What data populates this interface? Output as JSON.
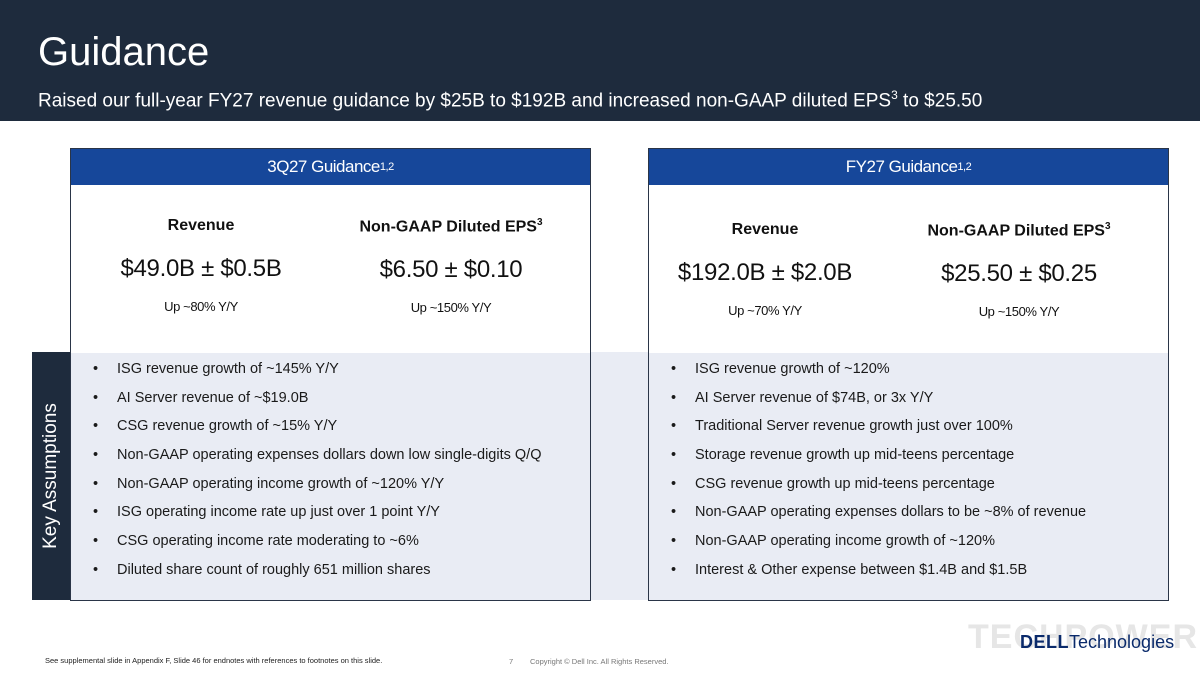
{
  "header": {
    "title": "Guidance",
    "subtitle": "Raised our full-year FY27 revenue guidance by $25B to $192B and increased non-GAAP diluted EPS",
    "subtitle_sup": "3",
    "subtitle_tail": " to $25.50"
  },
  "key_assumptions_label": "Key Assumptions",
  "panels": [
    {
      "title": "3Q27 Guidance",
      "title_sup": "1,2",
      "revenue": {
        "label": "Revenue",
        "value": "$49.0B ± $0.5B",
        "growth": "Up ~80% Y/Y"
      },
      "eps": {
        "label": "Non-GAAP Diluted EPS",
        "label_sup": "3",
        "value": "$6.50 ± $0.10",
        "growth": "Up ~150% Y/Y"
      },
      "assumptions": [
        "ISG revenue growth of ~145% Y/Y",
        "AI Server revenue of ~$19.0B",
        "CSG revenue growth of ~15% Y/Y",
        "Non-GAAP operating expenses dollars down low single-digits Q/Q",
        "Non-GAAP operating income growth of ~120% Y/Y",
        "ISG operating income rate up just over 1 point Y/Y",
        "CSG operating income rate moderating to ~6%",
        "Diluted share count of roughly 651 million shares"
      ]
    },
    {
      "title": "FY27 Guidance",
      "title_sup": "1,2",
      "revenue": {
        "label": "Revenue",
        "value": "$192.0B ± $2.0B",
        "growth": "Up ~70% Y/Y"
      },
      "eps": {
        "label": "Non-GAAP Diluted EPS",
        "label_sup": "3",
        "value": "$25.50 ± $0.25",
        "growth": "Up ~150% Y/Y"
      },
      "assumptions": [
        "ISG revenue growth of ~120%",
        "AI Server revenue of $74B, or 3x Y/Y",
        "Traditional Server revenue growth just over 100%",
        "Storage revenue growth up mid-teens percentage",
        "CSG revenue growth up mid-teens percentage",
        "Non-GAAP operating expenses dollars to be ~8% of revenue",
        "Non-GAAP operating income growth of ~120%",
        "Interest & Other expense between $1.4B and $1.5B"
      ]
    }
  ],
  "bullet_char": "•",
  "footer": {
    "note": "See supplemental slide in Appendix F, Slide 46 for endnotes with references to footnotes on this slide.",
    "page": "7",
    "copyright": "Copyright © Dell Inc. All Rights Reserved."
  },
  "watermark": "TECHPOWERUP",
  "logo": {
    "brand": "DELL",
    "suffix": "Technologies"
  },
  "colors": {
    "header_bg": "#1e2b3d",
    "panel_head": "#16479a",
    "band_bg": "#e9ecf4"
  }
}
